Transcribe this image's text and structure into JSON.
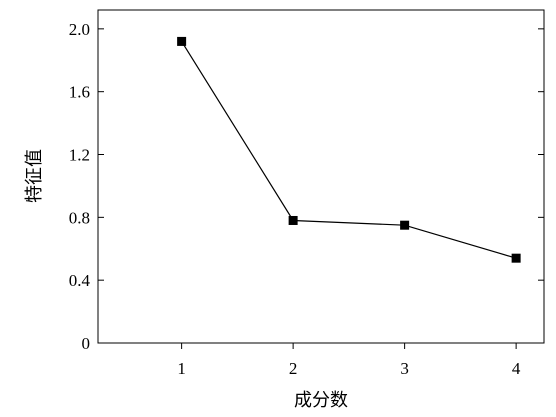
{
  "chart_data": {
    "type": "line",
    "title": "",
    "xlabel": "成分数",
    "ylabel": "特征值",
    "x": [
      1,
      2,
      3,
      4
    ],
    "series": [
      {
        "values": [
          1.92,
          0.78,
          0.75,
          0.54
        ]
      }
    ],
    "xlim": [
      0.25,
      4.25
    ],
    "ylim": [
      0,
      2.12
    ],
    "xticks": [
      1,
      2,
      3,
      4
    ],
    "xtick_labels": [
      "1",
      "2",
      "3",
      "4"
    ],
    "yticks": [
      0,
      0.4,
      0.8,
      1.2,
      1.6,
      2.0
    ],
    "ytick_labels": [
      "0",
      "0.4",
      "0.8",
      "1.2",
      "1.6",
      "2.0"
    ],
    "marker": "square",
    "grid": false,
    "legend": "none",
    "colors": {
      "line": "#000000",
      "marker": "#000000",
      "axis": "#000000"
    }
  }
}
